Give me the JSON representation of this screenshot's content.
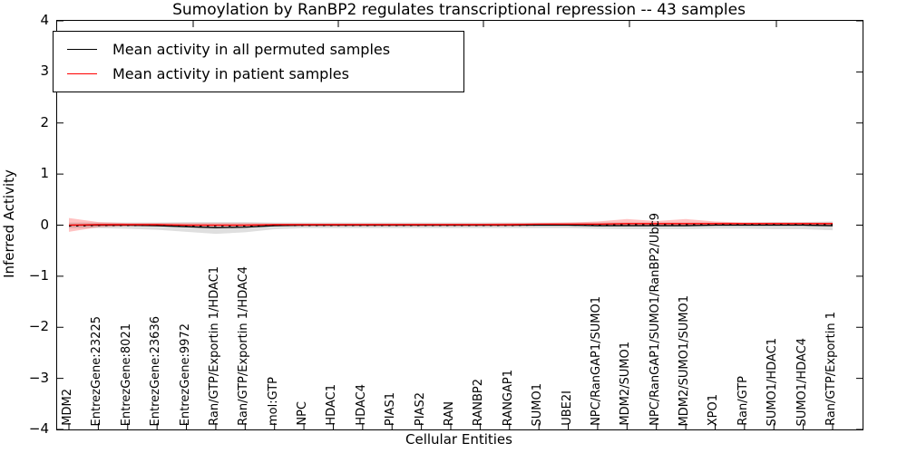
{
  "title": "Sumoylation by RanBP2 regulates transcriptional repression -- 43 samples",
  "axes": {
    "xlabel": "Cellular Entities",
    "ylabel": "Inferred Activity"
  },
  "legend": {
    "items": [
      {
        "label": "Mean activity in all permuted samples",
        "color": "#000000"
      },
      {
        "label": "Mean activity in patient samples",
        "color": "#ff0000"
      }
    ]
  },
  "chart_data": {
    "type": "line",
    "title": "Sumoylation by RanBP2 regulates transcriptional repression -- 43 samples",
    "xlabel": "Cellular Entities",
    "ylabel": "Inferred Activity",
    "ylim": [
      -4,
      4
    ],
    "yticks": [
      4,
      3,
      2,
      1,
      0,
      -1,
      -2,
      -3,
      -4
    ],
    "ytick_labels": [
      "4",
      "3",
      "2",
      "1",
      "0",
      "−1",
      "−2",
      "−3",
      "−4"
    ],
    "grid": false,
    "legend_position": "upper left",
    "categories": [
      "MDM2",
      "EntrezGene:23225",
      "EntrezGene:8021",
      "EntrezGene:23636",
      "EntrezGene:9972",
      "Ran/GTP/Exportin 1/HDAC1",
      "Ran/GTP/Exportin 1/HDAC4",
      "mol:GTP",
      "NPC",
      "HDAC1",
      "HDAC4",
      "PIAS1",
      "PIAS2",
      "RAN",
      "RANBP2",
      "RANGAP1",
      "SUMO1",
      "UBE2I",
      "NPC/RanGAP1/SUMO1",
      "MDM2/SUMO1",
      "NPC/RanGAP1/SUMO1/RanBP2/Ubc9",
      "MDM2/SUMO1/SUMO1",
      "XPO1",
      "Ran/GTP",
      "SUMO1/HDAC1",
      "SUMO1/HDAC4",
      "Ran/GTP/Exportin 1"
    ],
    "series": [
      {
        "name": "Mean activity in all permuted samples",
        "color": "#000000",
        "band_color": "rgba(110,110,110,0.22)",
        "values": [
          0,
          0,
          0,
          -0.01,
          -0.03,
          -0.05,
          -0.04,
          -0.01,
          0,
          0,
          0,
          0,
          0,
          0,
          0,
          0,
          0,
          0,
          -0.01,
          -0.01,
          -0.01,
          -0.01,
          0,
          0,
          0,
          0,
          -0.01
        ],
        "band_lower": [
          -0.06,
          -0.06,
          -0.07,
          -0.09,
          -0.13,
          -0.17,
          -0.14,
          -0.08,
          -0.06,
          -0.06,
          -0.06,
          -0.06,
          -0.06,
          -0.06,
          -0.06,
          -0.06,
          -0.06,
          -0.06,
          -0.07,
          -0.08,
          -0.08,
          -0.08,
          -0.07,
          -0.07,
          -0.08,
          -0.08,
          -0.1
        ],
        "band_upper": [
          0.05,
          0.05,
          0.05,
          0.05,
          0.06,
          0.06,
          0.06,
          0.05,
          0.05,
          0.05,
          0.05,
          0.05,
          0.05,
          0.05,
          0.05,
          0.05,
          0.05,
          0.05,
          0.05,
          0.05,
          0.05,
          0.05,
          0.05,
          0.05,
          0.06,
          0.06,
          0.07
        ]
      },
      {
        "name": "Mean activity in patient samples",
        "color": "#ff0000",
        "band_color": "rgba(255,0,0,0.24)",
        "values": [
          0,
          0.01,
          0.01,
          0.01,
          0,
          0,
          0,
          0.01,
          0.01,
          0.01,
          0.01,
          0.01,
          0.01,
          0.01,
          0.01,
          0.01,
          0.02,
          0.02,
          0.02,
          0.03,
          0.03,
          0.03,
          0.03,
          0.03,
          0.03,
          0.03,
          0.03
        ],
        "band_lower": [
          -0.13,
          -0.04,
          -0.02,
          -0.02,
          -0.02,
          -0.03,
          -0.03,
          -0.02,
          -0.02,
          -0.02,
          -0.02,
          -0.02,
          -0.02,
          -0.02,
          -0.02,
          -0.02,
          -0.01,
          -0.01,
          -0.01,
          -0.01,
          -0.01,
          -0.01,
          -0.01,
          0,
          0,
          0,
          0
        ],
        "band_upper": [
          0.14,
          0.06,
          0.04,
          0.04,
          0.04,
          0.04,
          0.04,
          0.03,
          0.03,
          0.03,
          0.03,
          0.03,
          0.03,
          0.03,
          0.03,
          0.04,
          0.04,
          0.05,
          0.07,
          0.12,
          0.08,
          0.12,
          0.07,
          0.05,
          0.05,
          0.05,
          0.05
        ]
      }
    ]
  }
}
